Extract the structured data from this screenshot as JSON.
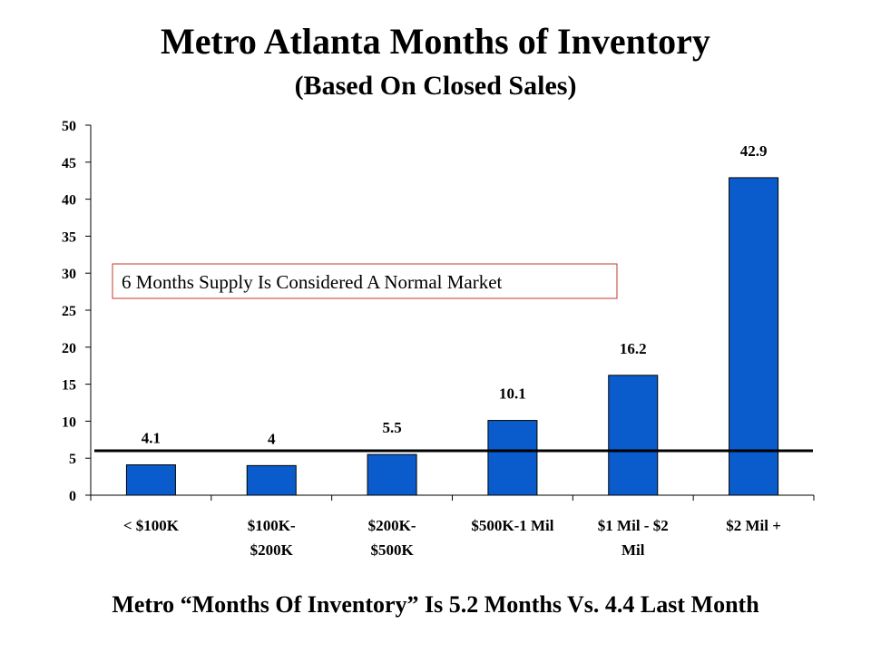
{
  "title": "Metro Atlanta Months of Inventory",
  "subtitle": "(Based On Closed Sales)",
  "annotation": "6 Months Supply Is Considered A Normal Market",
  "footer": "Metro “Months Of Inventory” Is 5.2 Months Vs. 4.4 Last Month",
  "colors": {
    "bar": "#0a5ccc",
    "reference_line": "#000000",
    "annotation_border": "#c0392b"
  },
  "chart_data": {
    "type": "bar",
    "categories": [
      [
        "< $100K"
      ],
      [
        "$100K-",
        "$200K"
      ],
      [
        "$200K-",
        "$500K"
      ],
      [
        "$500K-1 Mil"
      ],
      [
        "$1 Mil - $2",
        "Mil"
      ],
      [
        "$2 Mil +"
      ]
    ],
    "values": [
      4.1,
      4,
      5.5,
      10.1,
      16.2,
      42.9
    ],
    "data_labels": [
      "4.1",
      "4",
      "5.5",
      "10.1",
      "16.2",
      "42.9"
    ],
    "reference_line": 6,
    "ylim": [
      0,
      50
    ],
    "yticks": [
      0,
      5,
      10,
      15,
      20,
      25,
      30,
      35,
      40,
      45,
      50
    ],
    "grid": false,
    "legend": "none"
  }
}
